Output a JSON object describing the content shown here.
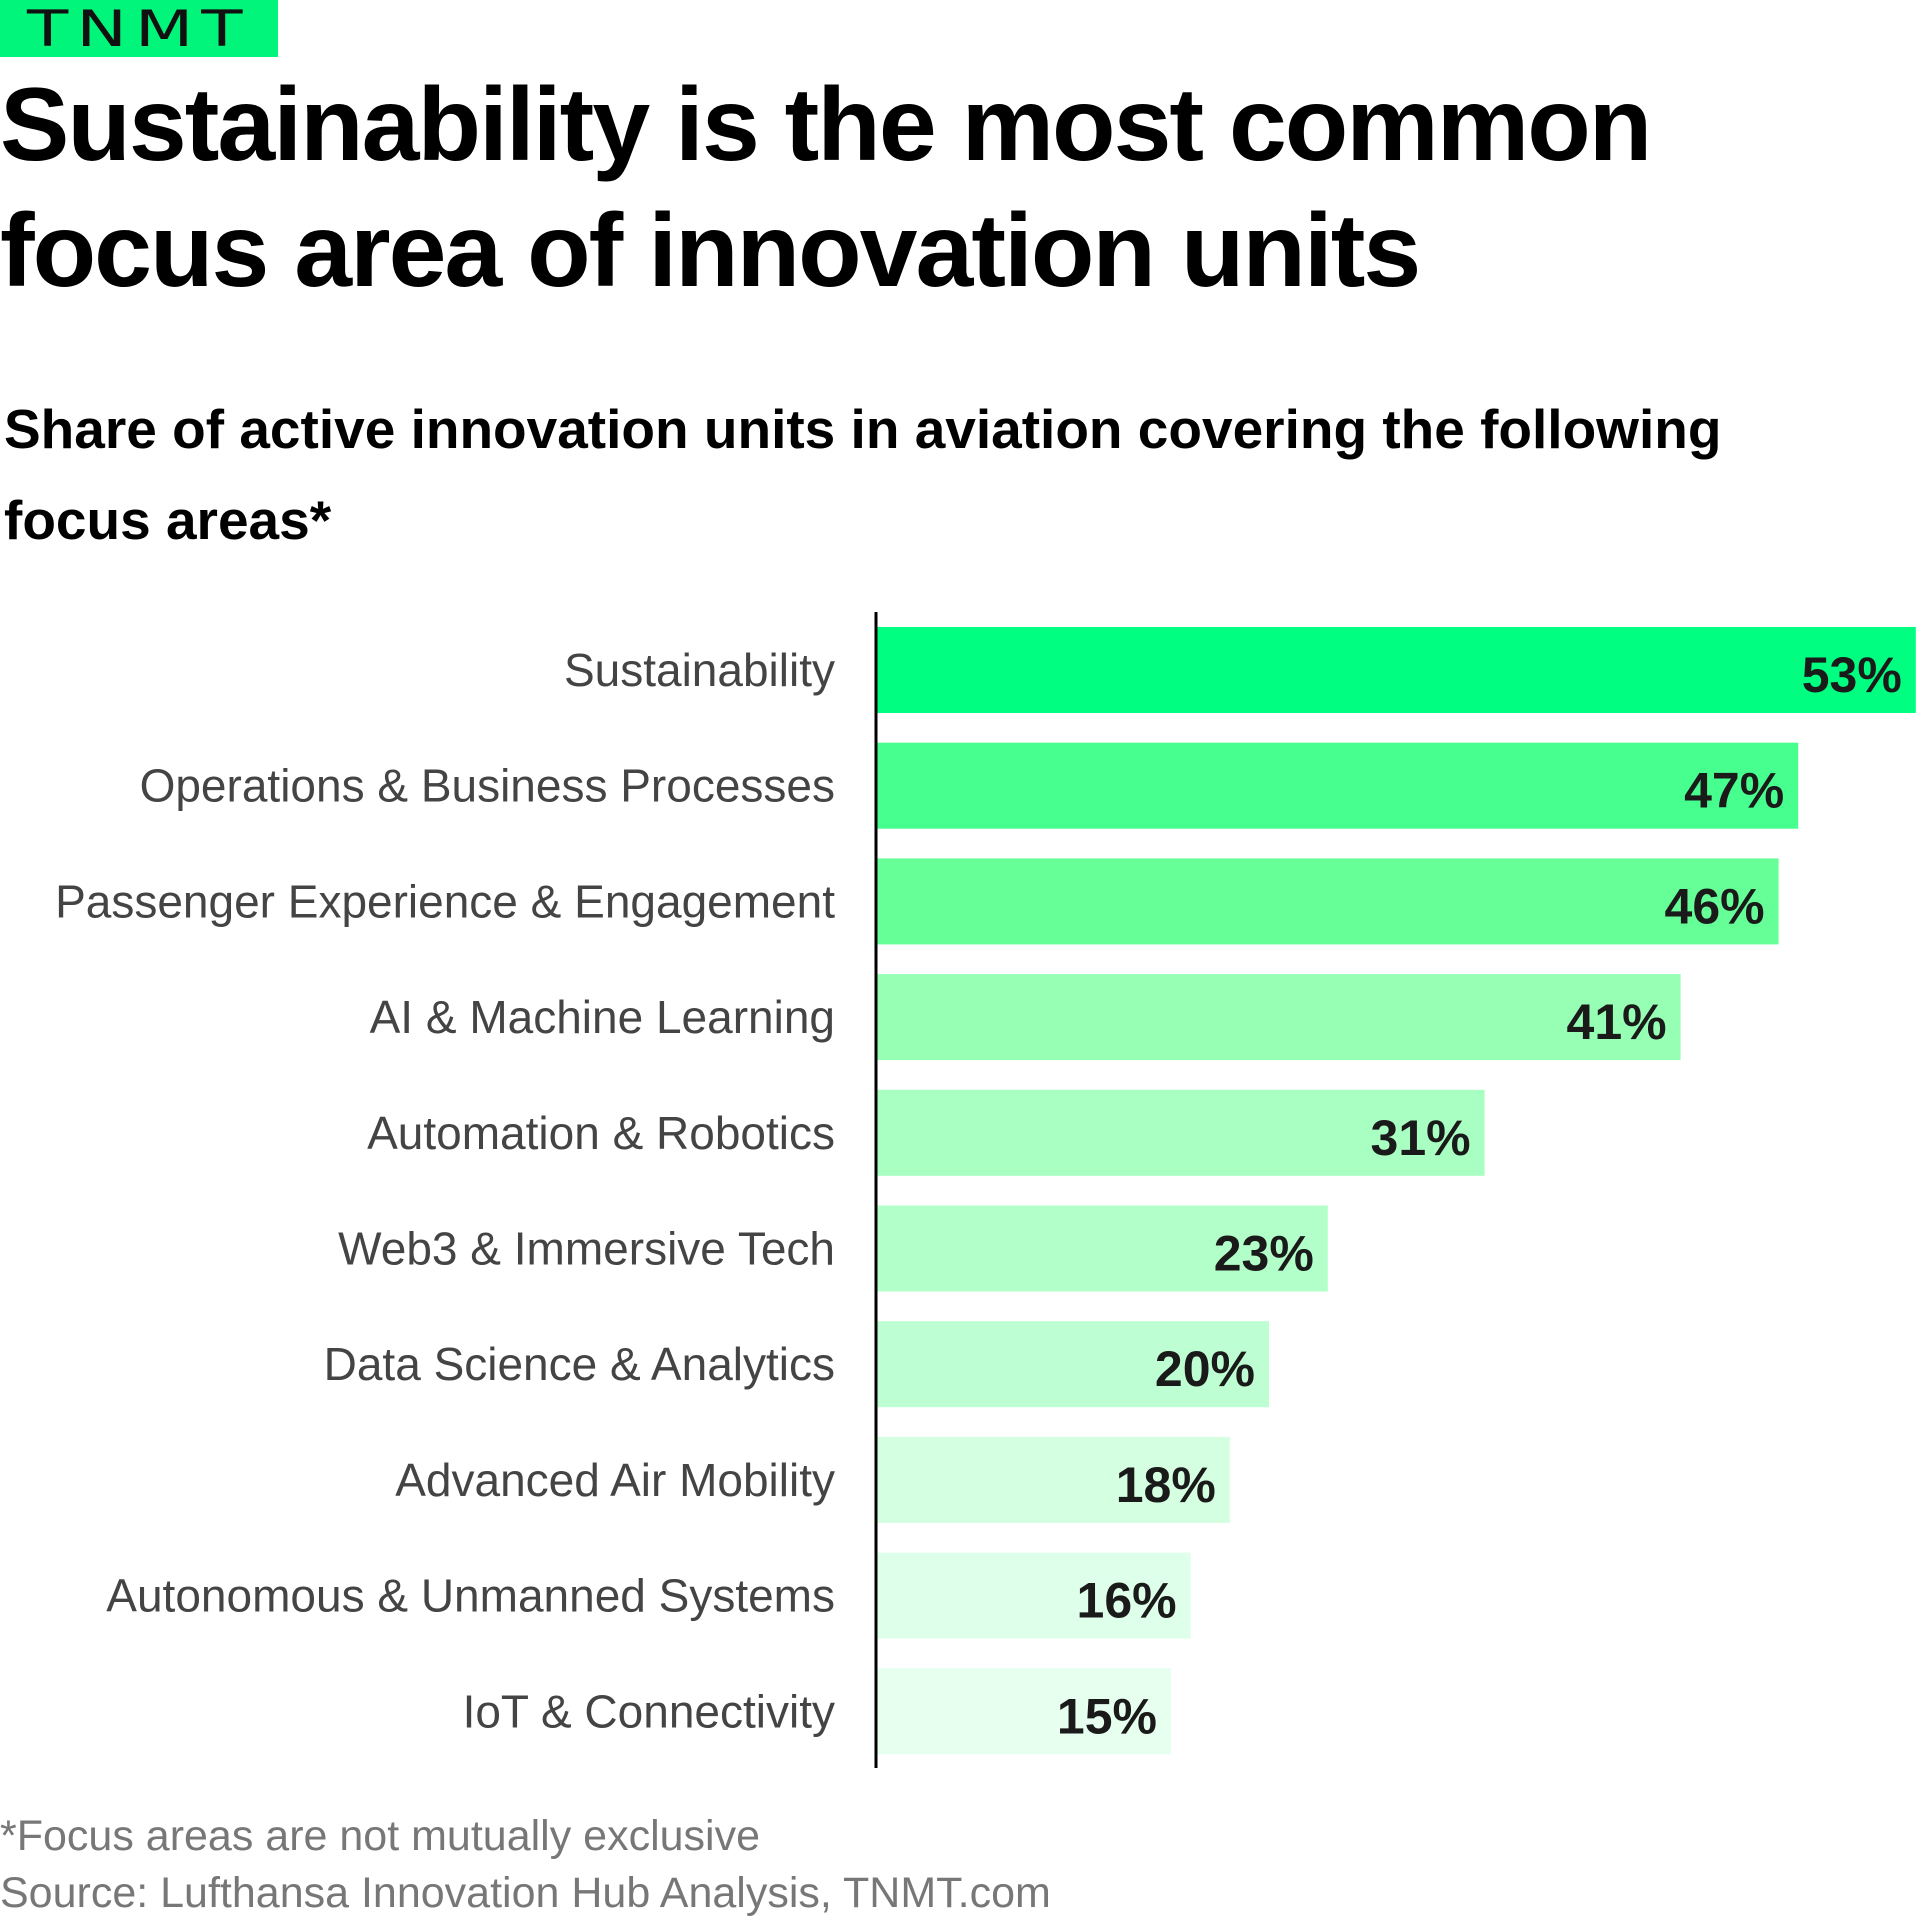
{
  "logo": "TNMT",
  "title": "Sustainability is the most common focus area of innovation units",
  "subtitle": "Share of active innovation units in aviation covering the following focus areas*",
  "footnote": "*Focus areas are not mutually exclusive",
  "source": "Source: Lufthansa Innovation Hub Analysis, TNMT.com",
  "chart_data": {
    "type": "bar",
    "orientation": "horizontal",
    "categories": [
      "Sustainability",
      "Operations & Business Processes",
      "Passenger Experience & Engagement",
      "AI & Machine Learning",
      "Automation & Robotics",
      "Web3 & Immersive Tech",
      "Data Science & Analytics",
      "Advanced Air Mobility",
      "Autonomous & Unmanned Systems",
      "IoT & Connectivity"
    ],
    "values": [
      53,
      47,
      46,
      41,
      31,
      23,
      20,
      18,
      16,
      15
    ],
    "data_labels": [
      "53%",
      "47%",
      "46%",
      "41%",
      "31%",
      "23%",
      "20%",
      "18%",
      "16%",
      "15%"
    ],
    "unit": "%",
    "colors": [
      "#00FF80",
      "#47FF8E",
      "#66FF97",
      "#96FFB4",
      "#A9FFC2",
      "#B3FFCA",
      "#BDFFD2",
      "#D4FFE0",
      "#DEFFE9",
      "#E6FFEE"
    ],
    "grid": false,
    "legend": "none"
  }
}
